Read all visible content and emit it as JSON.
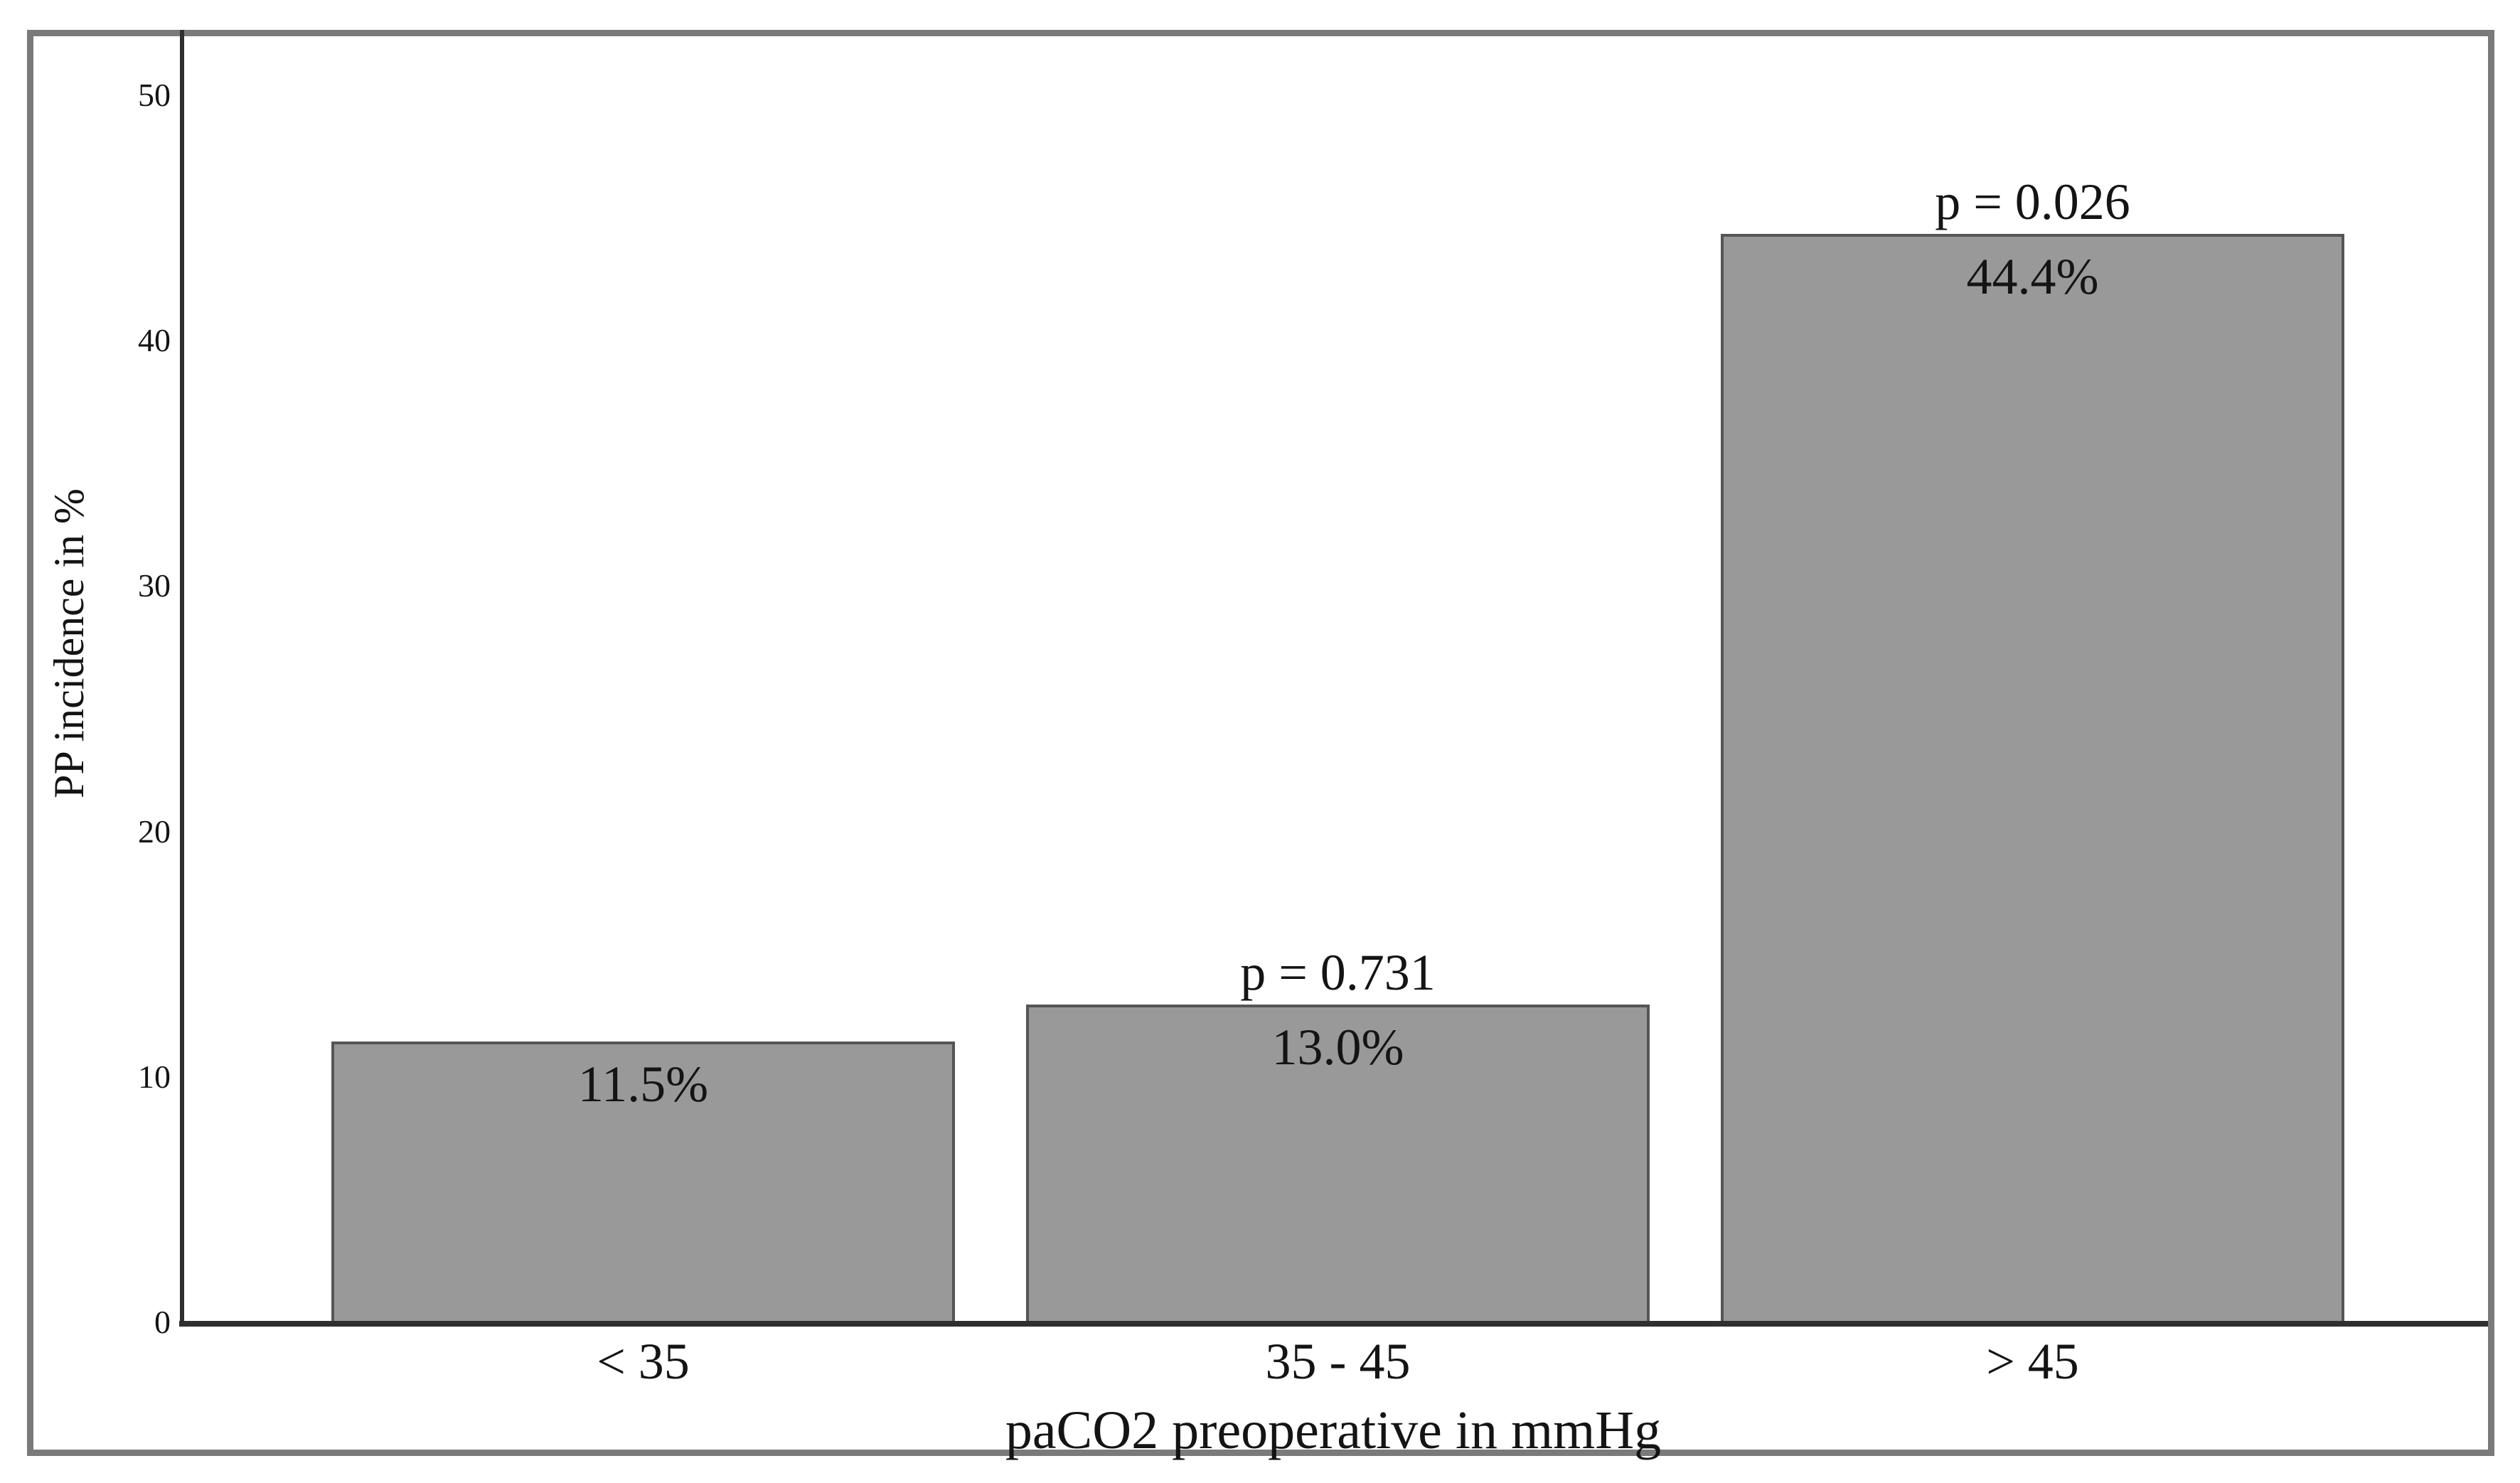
{
  "chart_data": {
    "type": "bar",
    "title": "",
    "categories": [
      "< 35",
      "35 - 45",
      "> 45"
    ],
    "values": [
      11.5,
      13.0,
      44.4
    ],
    "bar_value_labels": [
      "11.5%",
      "13.0%",
      "44.4%"
    ],
    "p_value_labels": [
      "",
      "p = 0.731",
      "p = 0.026"
    ],
    "xlabel": "paCO2 preoperative in mmHg",
    "ylabel": "PP incidence in %",
    "yticks": [
      "0",
      "10",
      "20",
      "30",
      "40",
      "50"
    ],
    "ylim": [
      0,
      52.7
    ],
    "grid": "off",
    "legend": "none",
    "colors": {
      "bar_fill": "#999999",
      "bar_border": "#555555",
      "axis_line": "#2f2f2f",
      "figure_frame": "#7a7a7a",
      "text": "#141414",
      "background": "#ffffff"
    }
  }
}
